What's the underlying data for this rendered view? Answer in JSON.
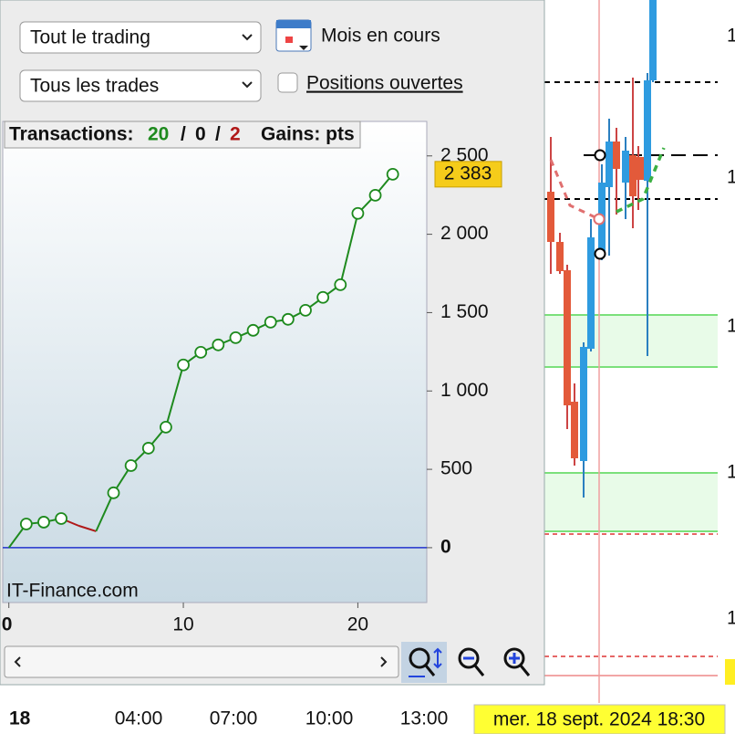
{
  "controls": {
    "period_select": "Tout le trading",
    "calendar_label": "Mois en cours",
    "trades_select": "Tous les trades",
    "open_positions_label": "Positions ouvertes"
  },
  "header": {
    "transactions_label": "Transactions:",
    "wins": 20,
    "separator_1": "/",
    "breakeven": 0,
    "separator_2": "/",
    "losses": 2,
    "gains_label": "Gains: pts"
  },
  "chart_data": {
    "type": "line",
    "watermark": "IT-Finance.com",
    "x": [
      0,
      1,
      2,
      3,
      4,
      5,
      6,
      7,
      8,
      9,
      10,
      11,
      12,
      13,
      14,
      15,
      16,
      17,
      18,
      19,
      20,
      21,
      22
    ],
    "series": [
      {
        "color": "#1e8a1e",
        "loss_color": "#b01818",
        "values": [
          0,
          151,
          163,
          186,
          140,
          105,
          350,
          524,
          635,
          769,
          1166,
          1247,
          1294,
          1340,
          1387,
          1439,
          1457,
          1515,
          1597,
          1678,
          2133,
          2249,
          2383
        ],
        "value_labels": [
          null,
          null,
          null,
          null,
          null,
          null,
          null,
          null,
          null,
          null,
          null,
          null,
          null,
          null,
          null,
          null,
          null,
          null,
          null,
          null,
          null,
          null,
          "2 383"
        ]
      }
    ],
    "xlim": [
      -0.35,
      23.95
    ],
    "xticks": [
      0,
      10,
      20
    ],
    "ylim": [
      -350,
      2720
    ],
    "yticks": [
      0,
      500,
      {
        "value": 1000,
        "label": "1 000"
      },
      {
        "value": 1500,
        "label": "1 500"
      },
      {
        "value": 2000,
        "label": "2 000"
      },
      {
        "value": 2500,
        "label": "2 500"
      }
    ],
    "zero_line_color": "#2233cc"
  },
  "background_chart": {
    "time_labels": [
      "18",
      "04:00",
      "07:00",
      "10:00",
      "13:00"
    ],
    "cursor_date": "mer. 18 sept. 2024 18:30",
    "price_axis_labels": [
      "1",
      "1",
      "1",
      "1",
      "1"
    ]
  }
}
